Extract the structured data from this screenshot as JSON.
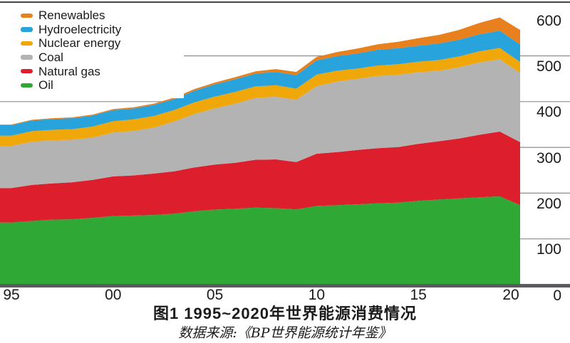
{
  "figure": {
    "title": "图1  1995~2020年世界能源消费情况",
    "source_note": "数据来源:《BP世界能源统计年鉴》"
  },
  "legend": {
    "position": "top-left",
    "items": [
      {
        "label": "Renewables",
        "color": "#E8801E",
        "series_key": "renewables"
      },
      {
        "label": "Hydroelectricity",
        "color": "#29A3DC",
        "series_key": "hydroelectricity"
      },
      {
        "label": "Nuclear energy",
        "color": "#F0A70A",
        "series_key": "nuclear"
      },
      {
        "label": "Coal",
        "color": "#B3B3B3",
        "series_key": "coal"
      },
      {
        "label": "Natural gas",
        "color": "#DD1F2D",
        "series_key": "natural_gas"
      },
      {
        "label": "Oil",
        "color": "#2FA836",
        "series_key": "oil"
      }
    ]
  },
  "axes": {
    "y_side": "right",
    "y_ticks": [
      600,
      500,
      400,
      300,
      200,
      100,
      0
    ],
    "x_tick_labels": [
      "95",
      "00",
      "05",
      "10",
      "15",
      "20"
    ],
    "x_tick_years": [
      1995,
      2000,
      2005,
      2010,
      2015,
      2020
    ]
  },
  "chart_data": {
    "type": "area",
    "stacked": true,
    "title": "图1  1995~2020年世界能源消费情况",
    "source_note": "数据来源:《BP世界能源统计年鉴》",
    "x": [
      1995,
      1996,
      1997,
      1998,
      1999,
      2000,
      2001,
      2002,
      2003,
      2004,
      2005,
      2006,
      2007,
      2008,
      2009,
      2010,
      2011,
      2012,
      2013,
      2014,
      2015,
      2016,
      2017,
      2018,
      2019,
      2020
    ],
    "x_tick_labels": [
      "95",
      "00",
      "05",
      "10",
      "15",
      "20"
    ],
    "ylim": [
      0,
      600
    ],
    "y_ticks": [
      0,
      100,
      200,
      300,
      400,
      500,
      600
    ],
    "y_axis_side": "right",
    "grid": "horizontal",
    "legend_position": "top-left",
    "stacking_order": "bottom_to_top",
    "series": [
      {
        "key": "oil",
        "name": "Oil",
        "color": "#2FA836",
        "values": [
          136.0,
          139.1,
          142.2,
          143.0,
          146.0,
          150.0,
          151.0,
          152.2,
          155.0,
          160.3,
          164.0,
          165.8,
          168.3,
          167.2,
          164.4,
          172.0,
          173.5,
          175.6,
          177.8,
          179.2,
          183.0,
          186.0,
          188.5,
          190.9,
          193.0,
          173.7
        ]
      },
      {
        "key": "natural_gas",
        "name": "Natural gas",
        "color": "#DD1F2D",
        "values": [
          75.2,
          78.8,
          78.9,
          80.8,
          83.1,
          86.5,
          87.8,
          90.5,
          92.8,
          95.9,
          98.5,
          100.4,
          104.6,
          106.5,
          103.6,
          114.1,
          116.1,
          118.8,
          120.4,
          121.2,
          124.8,
          127.4,
          130.9,
          136.6,
          141.5,
          137.6
        ]
      },
      {
        "key": "coal",
        "name": "Coal",
        "color": "#B3B3B3",
        "values": [
          92.0,
          94.4,
          94.2,
          92.8,
          92.4,
          95.8,
          97.1,
          100.4,
          108.9,
          116.6,
          122.9,
          129.2,
          135.3,
          137.1,
          135.9,
          147.6,
          153.9,
          155.4,
          158.0,
          158.2,
          156.3,
          153.9,
          155.5,
          158.0,
          157.9,
          151.4
        ]
      },
      {
        "key": "nuclear",
        "name": "Nuclear energy",
        "color": "#F0A70A",
        "values": [
          22.4,
          23.0,
          23.0,
          23.2,
          24.0,
          24.7,
          25.3,
          25.5,
          24.9,
          25.7,
          25.7,
          25.9,
          25.1,
          24.9,
          24.4,
          25.3,
          24.0,
          22.4,
          22.7,
          23.0,
          23.2,
          23.6,
          23.8,
          24.4,
          24.9,
          24.0
        ]
      },
      {
        "key": "hydroelectricity",
        "name": "Hydroelectricity",
        "color": "#29A3DC",
        "values": [
          23.0,
          23.4,
          23.8,
          24.0,
          24.1,
          24.4,
          23.7,
          24.2,
          24.1,
          25.5,
          26.7,
          27.7,
          27.8,
          29.3,
          29.6,
          31.1,
          31.7,
          33.1,
          34.3,
          35.0,
          35.0,
          36.1,
          36.4,
          37.1,
          37.7,
          38.2
        ]
      },
      {
        "key": "renewables",
        "name": "Renewables",
        "color": "#E8801E",
        "values": [
          1.4,
          1.5,
          1.7,
          1.9,
          2.1,
          2.3,
          2.6,
          2.9,
          3.2,
          3.5,
          3.9,
          4.5,
          5.2,
          6.0,
          6.9,
          7.5,
          9.2,
          10.7,
          12.2,
          14.0,
          16.5,
          18.8,
          21.6,
          25.0,
          29.0,
          31.7
        ]
      }
    ]
  }
}
